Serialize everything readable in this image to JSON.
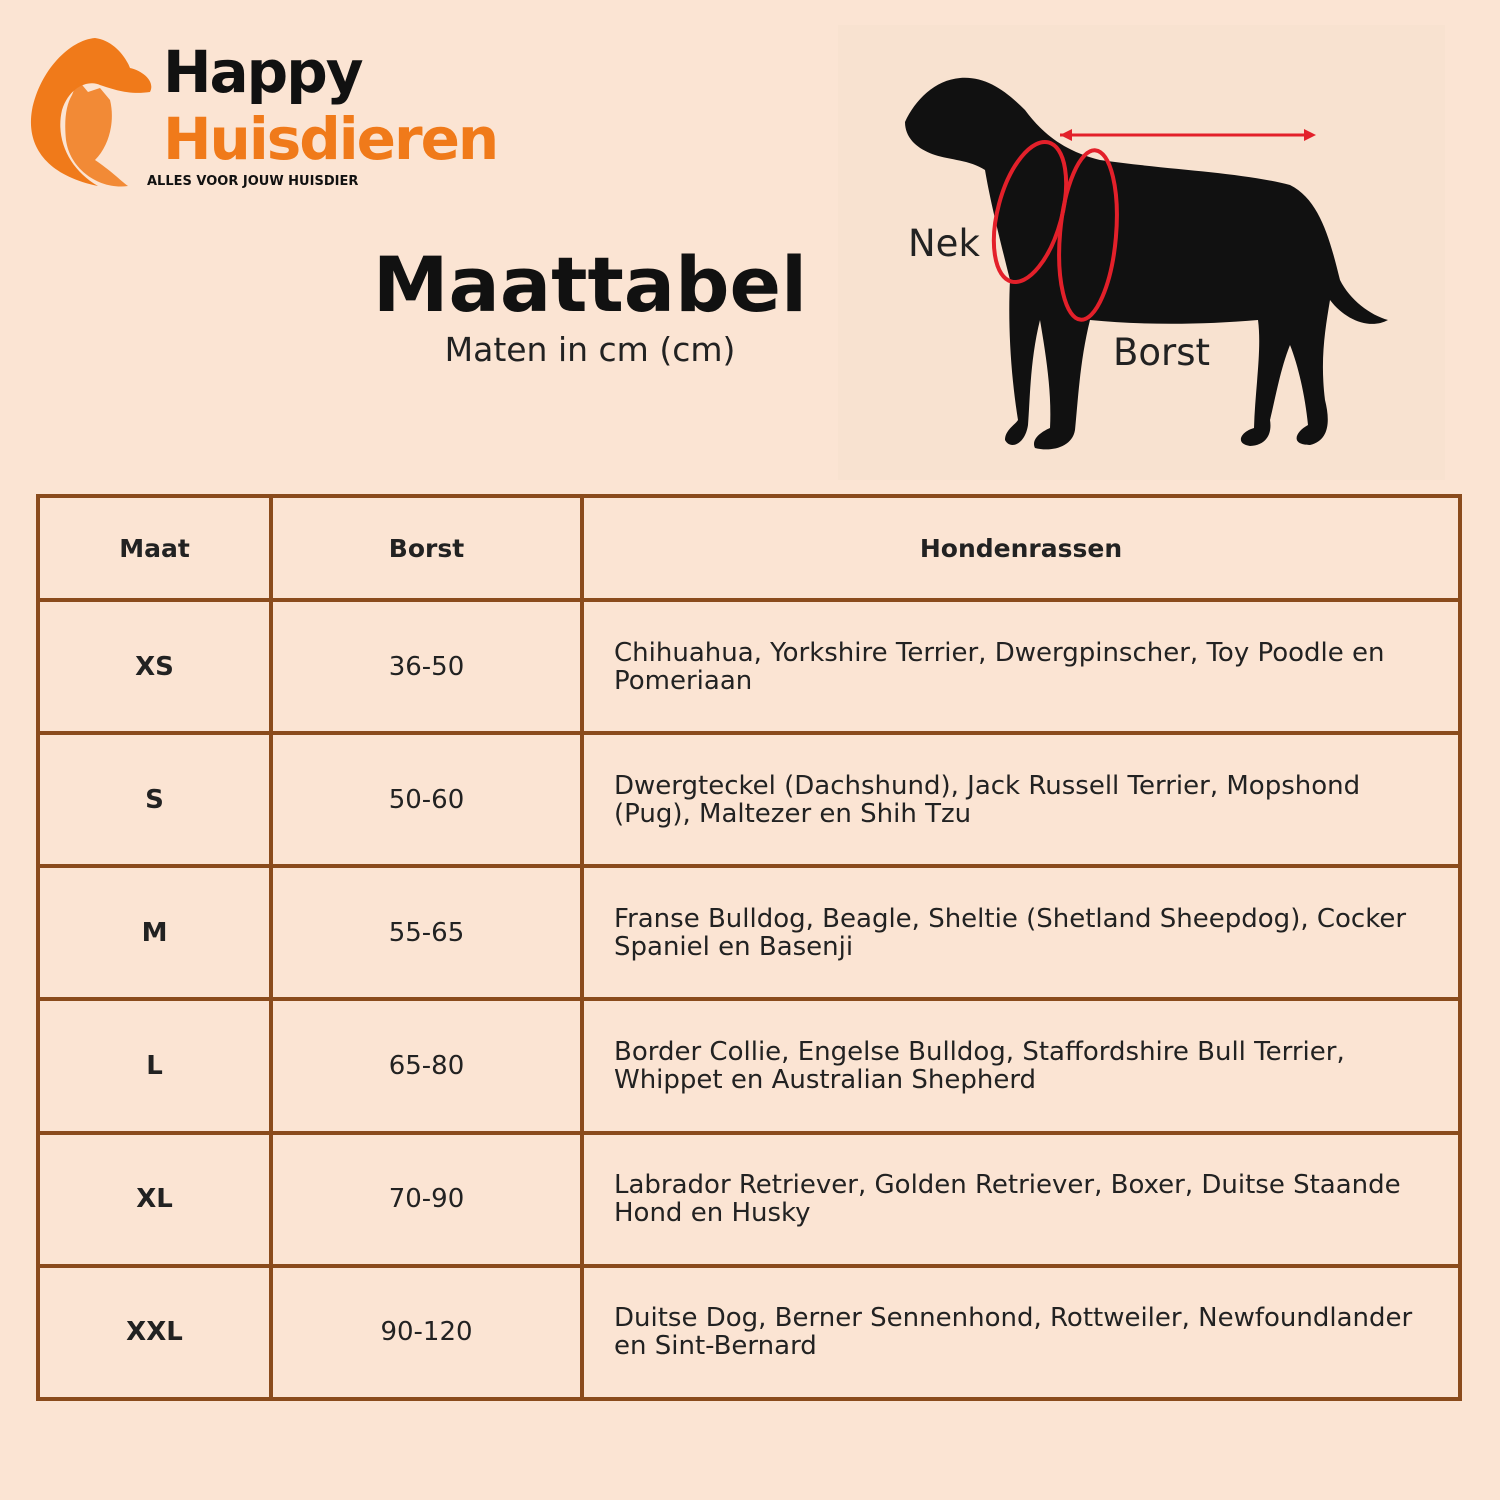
{
  "logo": {
    "line1": "Happy",
    "line2": "Huisdieren",
    "tagline": "ALLES VOOR JOUW HUISDIER"
  },
  "header": {
    "title": "Maattabel",
    "subtitle": "Maten in cm (cm)"
  },
  "diagram": {
    "neck_label": "Nek",
    "chest_label": "Borst"
  },
  "table": {
    "columns": [
      "Maat",
      "Borst",
      "Hondenrassen"
    ],
    "rows": [
      [
        "XS",
        "36-50",
        "Chihuahua, Yorkshire Terrier, Dwergpinscher, Toy Poodle en Pomeriaan"
      ],
      [
        "S",
        "50-60",
        "Dwergteckel (Dachshund), Jack Russell Terrier, Mopshond (Pug), Maltezer en Shih Tzu"
      ],
      [
        "M",
        "55-65",
        "Franse Bulldog, Beagle, Sheltie (Shetland Sheepdog), Cocker Spaniel en Basenji"
      ],
      [
        "L",
        "65-80",
        "Border Collie, Engelse Bulldog, Staffordshire Bull Terrier, Whippet en Australian Shepherd"
      ],
      [
        "XL",
        "70-90",
        "Labrador Retriever, Golden Retriever, Boxer, Duitse Staande Hond en Husky"
      ],
      [
        "XXL",
        "90-120",
        "Duitse Dog, Berner Sennenhond, Rottweiler, Newfoundlander en Sint-Bernard"
      ]
    ]
  }
}
